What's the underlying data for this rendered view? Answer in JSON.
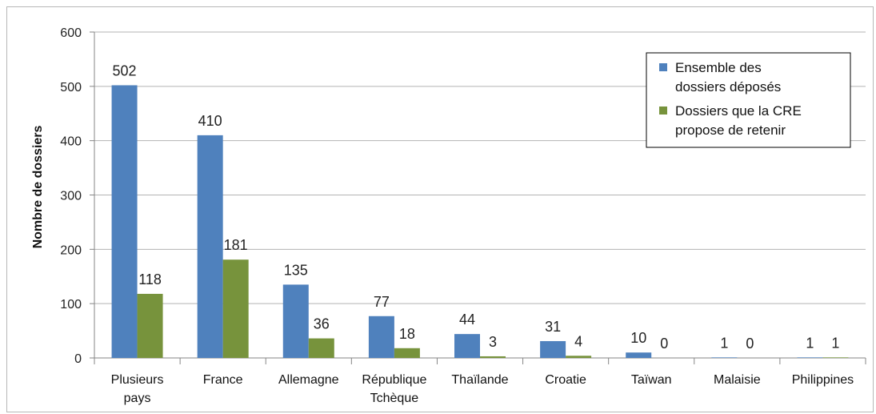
{
  "chart_data": {
    "type": "bar",
    "categories": [
      "Plusieurs pays",
      "France",
      "Allemagne",
      "République Tchèque",
      "Thaïlande",
      "Croatie",
      "Taïwan",
      "Malaisie",
      "Philippines"
    ],
    "category_lines": [
      [
        "Plusieurs",
        "pays"
      ],
      [
        "France"
      ],
      [
        "Allemagne"
      ],
      [
        "République",
        "Tchèque"
      ],
      [
        "Thaïlande"
      ],
      [
        "Croatie"
      ],
      [
        "Taïwan"
      ],
      [
        "Malaisie"
      ],
      [
        "Philippines"
      ]
    ],
    "series": [
      {
        "name": "Ensemble des dossiers déposés",
        "name_lines": [
          "Ensemble des",
          "dossiers déposés"
        ],
        "color": "#4f81bd",
        "values": [
          502,
          410,
          135,
          77,
          44,
          31,
          10,
          1,
          1
        ]
      },
      {
        "name": "Dossiers que la CRE propose de retenir",
        "name_lines": [
          "Dossiers que la CRE",
          "propose de retenir"
        ],
        "color": "#77933c",
        "values": [
          118,
          181,
          36,
          18,
          3,
          4,
          0,
          0,
          1
        ]
      }
    ],
    "ylabel": "Nombre de dossiers",
    "ylim": [
      0,
      600
    ],
    "yticks": [
      0,
      100,
      200,
      300,
      400,
      500,
      600
    ],
    "grid": true,
    "legend_position": "top-right",
    "data_labels": true
  }
}
